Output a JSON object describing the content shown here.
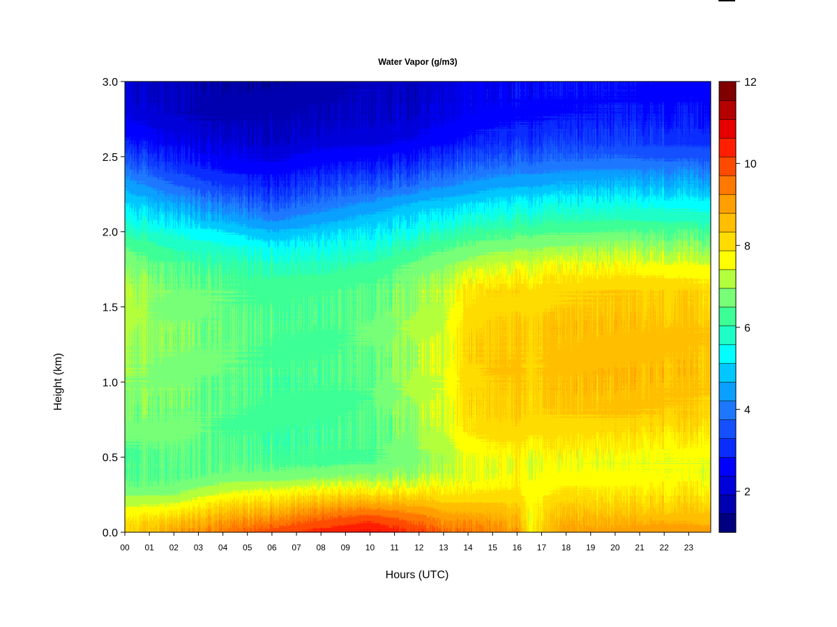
{
  "chart_data": {
    "type": "heatmap",
    "title": "Water Vapor (g/m3)",
    "xlabel": "Hours (UTC)",
    "ylabel": "Height (km)",
    "x_ticks": [
      "00",
      "01",
      "02",
      "03",
      "04",
      "05",
      "06",
      "07",
      "08",
      "09",
      "10",
      "11",
      "12",
      "13",
      "14",
      "15",
      "16",
      "17",
      "18",
      "19",
      "20",
      "21",
      "22",
      "23"
    ],
    "y_ticks": [
      "0.0",
      "0.5",
      "1.0",
      "1.5",
      "2.0",
      "2.5",
      "3.0"
    ],
    "xlim": [
      0,
      23.9
    ],
    "ylim": [
      0.0,
      3.0
    ],
    "colorbar": {
      "min": 1,
      "max": 12,
      "step": 0.5,
      "tick_labels": [
        "2",
        "4",
        "6",
        "8",
        "10",
        "12"
      ],
      "tick_values": [
        2,
        4,
        6,
        8,
        10,
        12
      ],
      "colors": [
        "#000080",
        "#0000b0",
        "#0000d8",
        "#0000ff",
        "#0a2cff",
        "#1450ff",
        "#1e78ff",
        "#0aa0ff",
        "#00c8ff",
        "#00ffff",
        "#1effc8",
        "#3cff96",
        "#78ff78",
        "#b4ff3c",
        "#ffff00",
        "#ffdc00",
        "#ffbe00",
        "#ffa000",
        "#ff7800",
        "#ff4b00",
        "#ff1e00",
        "#e60000",
        "#b40000",
        "#800000"
      ]
    },
    "profile_heights_km": [
      0.0,
      0.05,
      0.1,
      0.15,
      0.2,
      0.25,
      0.3,
      0.35,
      0.4,
      0.45,
      0.5,
      0.6,
      0.7,
      0.8,
      1.0,
      1.2,
      1.4,
      1.6,
      1.7,
      1.8,
      1.9,
      2.0,
      2.1,
      2.2,
      2.3,
      2.4,
      2.5,
      2.6,
      2.8,
      3.0
    ],
    "profile_times_h": [
      0,
      2,
      4,
      6,
      8,
      10,
      12,
      13,
      14,
      15,
      16,
      16.5,
      18,
      20,
      22,
      23.9
    ],
    "profiles_gm3": [
      [
        8.8,
        8.7,
        8.4,
        8.1,
        7.8,
        7.4,
        7.1,
        7.0,
        6.9,
        6.9,
        6.8,
        7.0,
        7.2,
        7.3,
        7.5,
        7.6,
        7.7,
        7.8,
        7.6,
        7.3,
        7.0,
        6.4,
        5.9,
        5.4,
        4.9,
        4.3,
        3.7,
        3.1,
        2.4,
        2.2
      ],
      [
        9.6,
        9.3,
        8.8,
        8.3,
        7.9,
        7.5,
        7.2,
        7.0,
        6.9,
        6.9,
        7.0,
        7.1,
        7.2,
        7.2,
        7.3,
        7.3,
        7.3,
        7.2,
        7.0,
        6.8,
        6.4,
        5.9,
        5.3,
        4.7,
        4.1,
        3.5,
        3.0,
        2.5,
        2.0,
        1.9
      ],
      [
        10.2,
        9.9,
        9.5,
        9.0,
        8.6,
        8.1,
        7.7,
        7.3,
        7.1,
        7.0,
        6.9,
        6.9,
        6.9,
        7.0,
        7.0,
        7.1,
        7.1,
        7.0,
        6.8,
        6.5,
        6.1,
        5.5,
        4.8,
        4.1,
        3.5,
        3.0,
        2.6,
        2.2,
        1.8,
        1.6
      ],
      [
        10.8,
        10.4,
        9.9,
        9.4,
        8.9,
        8.4,
        7.9,
        7.4,
        7.1,
        6.9,
        6.8,
        6.7,
        6.7,
        6.8,
        6.8,
        6.9,
        6.9,
        6.8,
        6.6,
        6.3,
        5.8,
        5.0,
        4.3,
        3.7,
        3.2,
        2.8,
        2.4,
        2.1,
        1.8,
        1.6
      ],
      [
        11.2,
        10.8,
        10.4,
        9.9,
        9.3,
        8.7,
        8.1,
        7.6,
        7.2,
        6.9,
        6.8,
        6.7,
        6.7,
        6.7,
        6.8,
        6.8,
        6.8,
        6.8,
        6.6,
        6.3,
        5.9,
        5.3,
        4.7,
        4.1,
        3.6,
        3.1,
        2.7,
        2.3,
        1.9,
        1.8
      ],
      [
        11.6,
        11.2,
        10.7,
        10.1,
        9.5,
        8.8,
        8.2,
        7.7,
        7.3,
        7.0,
        6.9,
        6.9,
        6.9,
        7.0,
        7.0,
        7.1,
        7.1,
        7.0,
        6.8,
        6.5,
        6.1,
        5.6,
        5.1,
        4.5,
        3.9,
        3.3,
        2.8,
        2.4,
        2.1,
        2.0
      ],
      [
        11.0,
        10.6,
        10.2,
        9.8,
        9.3,
        8.8,
        8.3,
        7.9,
        7.6,
        7.4,
        7.4,
        7.5,
        7.6,
        7.7,
        7.8,
        7.8,
        7.7,
        7.6,
        7.4,
        7.1,
        6.7,
        6.1,
        5.6,
        5.0,
        4.3,
        3.7,
        3.1,
        2.6,
        2.2,
        2.0
      ],
      [
        10.4,
        10.1,
        9.8,
        9.4,
        9.0,
        8.6,
        8.3,
        8.0,
        7.8,
        7.7,
        7.6,
        7.8,
        7.9,
        8.0,
        8.0,
        8.0,
        7.9,
        7.8,
        7.6,
        7.3,
        6.9,
        6.3,
        5.7,
        5.1,
        4.5,
        3.9,
        3.3,
        2.8,
        2.4,
        2.3
      ],
      [
        10.2,
        10.0,
        9.7,
        9.3,
        9.0,
        8.6,
        8.3,
        8.1,
        8.0,
        8.0,
        8.1,
        8.3,
        8.6,
        8.7,
        8.8,
        8.8,
        8.7,
        8.5,
        8.1,
        7.6,
        7.1,
        6.5,
        5.9,
        5.3,
        4.7,
        4.1,
        3.5,
        3.0,
        2.6,
        2.5
      ],
      [
        10.1,
        9.9,
        9.6,
        9.3,
        9.0,
        8.7,
        8.4,
        8.2,
        8.1,
        8.1,
        8.2,
        8.5,
        8.8,
        8.9,
        9.0,
        9.1,
        9.0,
        8.8,
        8.3,
        7.8,
        7.3,
        6.7,
        6.1,
        5.5,
        4.9,
        4.3,
        3.7,
        3.2,
        2.7,
        2.6
      ],
      [
        9.8,
        9.5,
        9.3,
        9.1,
        8.9,
        8.7,
        8.5,
        8.4,
        8.3,
        8.2,
        8.3,
        8.6,
        8.9,
        9.0,
        9.1,
        9.1,
        9.0,
        8.8,
        8.4,
        7.9,
        7.4,
        6.8,
        6.2,
        5.6,
        5.0,
        4.4,
        3.8,
        3.3,
        2.8,
        2.7
      ],
      [
        8.4,
        8.4,
        8.3,
        8.3,
        8.3,
        8.2,
        8.2,
        8.1,
        8.1,
        8.0,
        8.1,
        8.4,
        8.7,
        8.8,
        8.9,
        8.9,
        8.9,
        8.7,
        8.3,
        7.9,
        7.4,
        6.8,
        6.2,
        5.6,
        5.0,
        4.4,
        3.8,
        3.3,
        2.8,
        2.7
      ],
      [
        9.7,
        9.5,
        9.3,
        9.1,
        8.9,
        8.7,
        8.5,
        8.3,
        8.2,
        8.1,
        8.2,
        8.5,
        8.8,
        9.0,
        9.2,
        9.2,
        9.1,
        8.9,
        8.5,
        8.0,
        7.5,
        6.9,
        6.3,
        5.7,
        5.1,
        4.5,
        3.9,
        3.4,
        2.9,
        2.8
      ],
      [
        9.7,
        9.5,
        9.3,
        9.0,
        8.8,
        8.6,
        8.4,
        8.2,
        8.1,
        8.0,
        8.2,
        8.5,
        8.8,
        9.1,
        9.3,
        9.3,
        9.2,
        9.0,
        8.6,
        8.1,
        7.6,
        7.0,
        6.4,
        5.8,
        5.2,
        4.6,
        4.0,
        3.5,
        3.0,
        2.9
      ],
      [
        9.8,
        9.6,
        9.3,
        9.0,
        8.8,
        8.6,
        8.4,
        8.2,
        8.1,
        8.0,
        8.1,
        8.4,
        8.7,
        9.0,
        9.2,
        9.2,
        9.1,
        8.9,
        8.5,
        8.0,
        7.5,
        6.9,
        6.3,
        5.7,
        5.1,
        4.5,
        3.9,
        3.4,
        2.9,
        2.8
      ],
      [
        9.7,
        9.5,
        9.2,
        9.0,
        8.8,
        8.6,
        8.4,
        8.2,
        8.1,
        8.0,
        8.1,
        8.4,
        8.7,
        8.9,
        9.1,
        9.1,
        9.0,
        8.8,
        8.4,
        7.9,
        7.4,
        6.8,
        6.2,
        5.6,
        5.0,
        4.4,
        3.8,
        3.3,
        2.8,
        2.7
      ]
    ]
  }
}
